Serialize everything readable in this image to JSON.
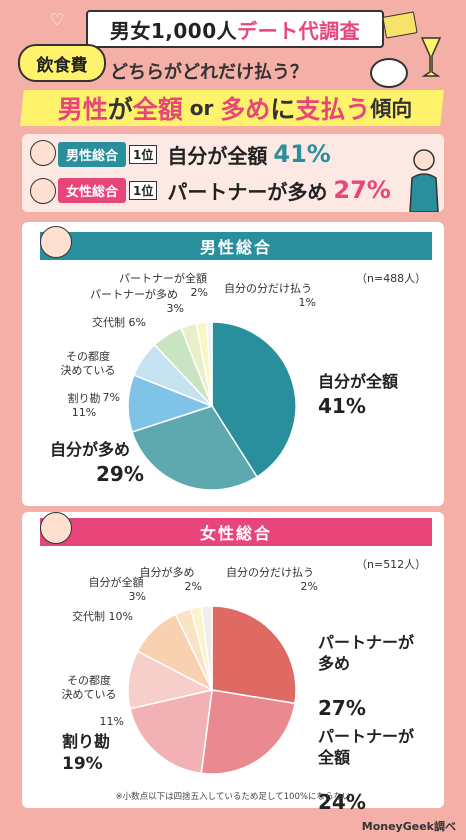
{
  "header": {
    "title_part1": "男女1,000人",
    "title_part2": "デート代調査",
    "category": "飲食費",
    "question": "どちらがどれだけ払う？",
    "headline_pink1": "男性",
    "headline_dark1": "が",
    "headline_pink2": "全額",
    "headline_small": " or ",
    "headline_pink3": "多め",
    "headline_dark2": "に",
    "headline_pink4": "支払う",
    "headline_dark3": "傾向"
  },
  "summary": {
    "male_tag": "男性総合",
    "male_rank": "1位",
    "male_text": "自分が全額",
    "male_pct": "41%",
    "female_tag": "女性総合",
    "female_rank": "1位",
    "female_text": "パートナーが多め",
    "female_pct": "27%"
  },
  "colors": {
    "male_accent": "#2a8f9c",
    "female_accent": "#e8457a",
    "background": "#f4b0a6"
  },
  "chart_data": [
    {
      "type": "pie",
      "title": "男性総合",
      "n_label": "（n=488人）",
      "slices": [
        {
          "label": "自分が全額",
          "value": 41,
          "color": "#2a8f9c"
        },
        {
          "label": "自分が多め",
          "value": 29,
          "color": "#5ea8b0"
        },
        {
          "label": "割り勘",
          "value": 11,
          "color": "#7fc4e6"
        },
        {
          "label": "その都度決めている",
          "value": 7,
          "color": "#c6e1f0"
        },
        {
          "label": "交代制",
          "value": 6,
          "color": "#c9e4c1"
        },
        {
          "label": "パートナーが多め",
          "value": 3,
          "color": "#e8efc9"
        },
        {
          "label": "パートナーが全額",
          "value": 2,
          "color": "#fbf7c4"
        },
        {
          "label": "自分の分だけ払う",
          "value": 1,
          "color": "#f2f2f2"
        }
      ]
    },
    {
      "type": "pie",
      "title": "女性総合",
      "n_label": "（n=512人）",
      "slices": [
        {
          "label": "パートナーが多め",
          "value": 27,
          "color": "#de6a63"
        },
        {
          "label": "パートナーが全額",
          "value": 24,
          "color": "#ea8a90"
        },
        {
          "label": "割り勘",
          "value": 19,
          "color": "#f2b1b4"
        },
        {
          "label": "その都度決めている",
          "value": 11,
          "color": "#f6cfcb"
        },
        {
          "label": "交代制",
          "value": 10,
          "color": "#f7d1b0"
        },
        {
          "label": "自分が全額",
          "value": 3,
          "color": "#fae2c5"
        },
        {
          "label": "自分が多め",
          "value": 2,
          "color": "#fbf3c9"
        },
        {
          "label": "自分の分だけ払う",
          "value": 2,
          "color": "#f0eeea"
        }
      ]
    }
  ],
  "male_labels": {
    "l_full": "自分が全額",
    "p_full": "41%",
    "l_more": "自分が多め",
    "p_more": "29%",
    "l_split": "割り勘",
    "p_split": "11%",
    "l_each": "その都度\n決めている",
    "p_each": "7%",
    "l_turn": "交代制",
    "p_turn": "6%",
    "l_pmore": "パートナーが多め",
    "p_pmore": "3%",
    "l_pfull": "パートナーが全額",
    "p_pfull": "2%",
    "l_own": "自分の分だけ払う",
    "p_own": "1%"
  },
  "female_labels": {
    "l_pmore": "パートナーが\n多め",
    "p_pmore": "27%",
    "l_pfull": "パートナーが\n全額",
    "p_pfull": "24%",
    "l_split": "割り勘",
    "p_split": "19%",
    "l_each": "その都度\n決めている",
    "p_each": "11%",
    "l_turn": "交代制",
    "p_turn": "10%",
    "l_full": "自分が全額",
    "p_full": "3%",
    "l_more": "自分が多め",
    "p_more": "2%",
    "l_own": "自分の分だけ払う",
    "p_own": "2%"
  },
  "footer": {
    "note": "※小数点以下は四捨五入しているため足して100%にならない",
    "credit": "MoneyGeek調べ"
  }
}
